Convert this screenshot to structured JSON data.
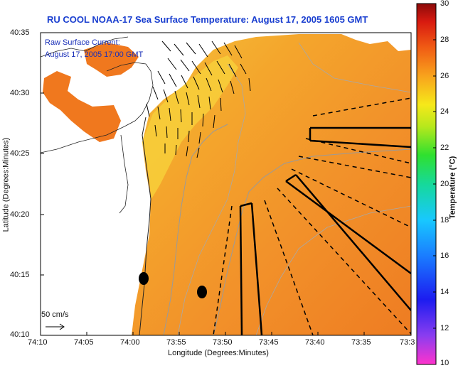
{
  "title": "RU COOL  NOAA-17  Sea Surface Temperature:  August 17, 2005 1605 GMT",
  "legend": {
    "line1": "Raw Surface Current:",
    "line2": "August 17, 2005 17:00 GMT",
    "scale_label": "50 cm/s"
  },
  "x_axis": {
    "label": "Longitude (Degrees:Minutes)",
    "ticks": [
      "74:10",
      "74:05",
      "74:00",
      "73:55",
      "73:50",
      "73:45",
      "73:40",
      "73:35",
      "73:3"
    ]
  },
  "y_axis": {
    "label": "Latitude (Degrees:Minutes)",
    "ticks": [
      "40:35",
      "40:30",
      "40:25",
      "40:20",
      "40:15",
      "40:10"
    ]
  },
  "colorbar": {
    "label": "Temperature (°C)",
    "ticks": [
      "30",
      "28",
      "26",
      "24",
      "22",
      "20",
      "18",
      "16",
      "14",
      "12",
      "10"
    ]
  },
  "colors": {
    "title": "#1a3fd0",
    "legend_text": "#1a2fb8",
    "warm_sst": "#f28a1e",
    "land": "#ffffff"
  }
}
